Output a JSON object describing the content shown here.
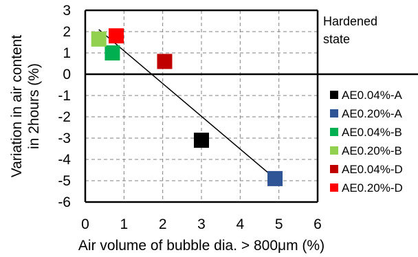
{
  "chart_data": {
    "type": "scatter",
    "title": "",
    "xlabel": "Air volume of bubble dia. > 800μm (%)",
    "ylabel_lines": [
      "Variation in air content",
      "in 2hours (%)"
    ],
    "xlim": [
      0,
      6
    ],
    "ylim": [
      -6,
      3
    ],
    "xticks": [
      0,
      1,
      2,
      3,
      4,
      5,
      6
    ],
    "yticks": [
      3,
      2,
      1,
      0,
      -1,
      -2,
      -3,
      -4,
      -5,
      -6
    ],
    "grid": "dashed",
    "legend_position": "right",
    "legend_title_lines": [
      "Hardened",
      "state"
    ],
    "series": [
      {
        "name": "AE0.04%-A",
        "color": "#000000",
        "points": [
          [
            3.0,
            -3.1
          ]
        ]
      },
      {
        "name": "AE0.20%-A",
        "color": "#2F5597",
        "points": [
          [
            4.9,
            -4.9
          ]
        ]
      },
      {
        "name": "AE0.04%-B",
        "color": "#00B050",
        "points": [
          [
            0.7,
            1.0
          ]
        ]
      },
      {
        "name": "AE0.20%-B",
        "color": "#92D050",
        "points": [
          [
            0.35,
            1.65
          ]
        ]
      },
      {
        "name": "AE0.04%-D",
        "color": "#C00000",
        "points": [
          [
            2.05,
            0.6
          ]
        ]
      },
      {
        "name": "AE0.20%-D",
        "color": "#FF0000",
        "points": [
          [
            0.8,
            1.8
          ]
        ]
      }
    ],
    "trendline": {
      "from": [
        0.35,
        2.1
      ],
      "to": [
        4.9,
        -4.9
      ],
      "color": "#000000"
    }
  }
}
